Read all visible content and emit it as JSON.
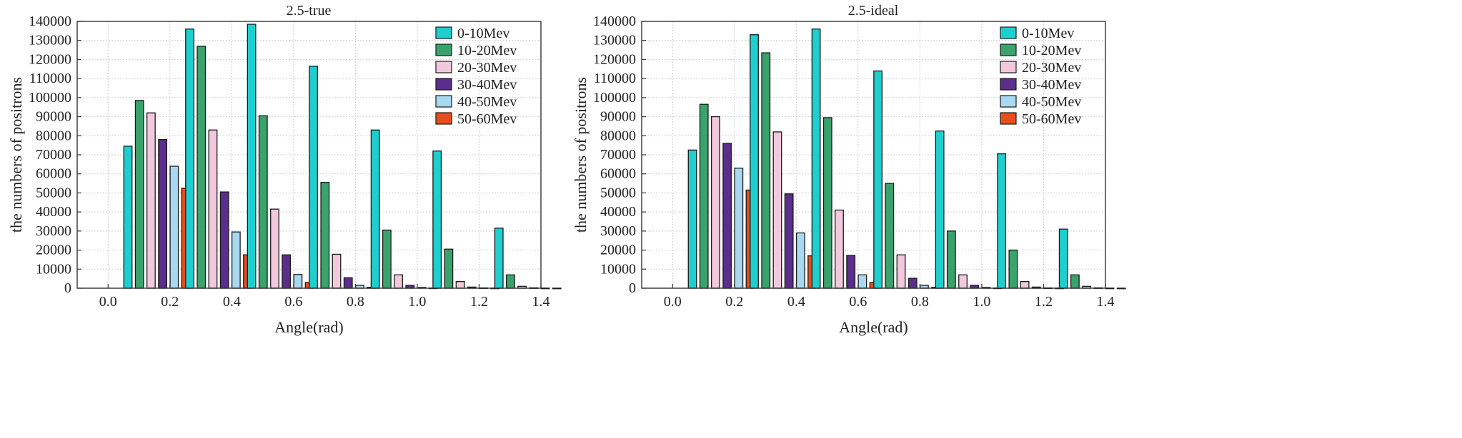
{
  "chart_data": [
    {
      "type": "bar",
      "title": "2.5-true",
      "xlabel": "Angle(rad)",
      "ylabel": "the numbers of positrons",
      "xlim": [
        -0.1,
        1.4
      ],
      "ylim": [
        0,
        140000
      ],
      "xticks": [
        "0.0",
        "0.2",
        "0.4",
        "0.6",
        "0.8",
        "1.0",
        "1.2",
        "1.4"
      ],
      "yticks": [
        "0",
        "10000",
        "20000",
        "30000",
        "40000",
        "50000",
        "60000",
        "70000",
        "80000",
        "90000",
        "100000",
        "110000",
        "120000",
        "130000",
        "140000"
      ],
      "grid": true,
      "legend_position": "top-right",
      "groups": [
        0,
        0.2,
        0.4,
        0.6,
        0.8,
        1.0,
        1.2
      ],
      "series": [
        {
          "name": "0-10Mev",
          "color": "#1fcfcf",
          "values": [
            74500,
            136000,
            138500,
            116500,
            83000,
            72000,
            31500
          ]
        },
        {
          "name": "10-20Mev",
          "color": "#3aa36b",
          "values": [
            98500,
            127000,
            90500,
            55500,
            30500,
            20500,
            7000
          ]
        },
        {
          "name": "20-30Mev",
          "color": "#f2c9dc",
          "values": [
            92000,
            83000,
            41500,
            17800,
            7000,
            3500,
            1000
          ]
        },
        {
          "name": "30-40Mev",
          "color": "#5b2d8c",
          "values": [
            78000,
            50500,
            17500,
            5500,
            1500,
            600,
            200
          ]
        },
        {
          "name": "40-50Mev",
          "color": "#a9d8f1",
          "values": [
            64000,
            29500,
            7200,
            1500,
            400,
            150,
            50
          ]
        },
        {
          "name": "50-60Mev",
          "color": "#e84e1b",
          "values": [
            52500,
            17500,
            3000,
            500,
            100,
            50,
            20
          ]
        }
      ]
    },
    {
      "type": "bar",
      "title": "2.5-ideal",
      "xlabel": "Angle(rad)",
      "ylabel": "the numbers of positrons",
      "xlim": [
        -0.1,
        1.4
      ],
      "ylim": [
        0,
        140000
      ],
      "xticks": [
        "0.0",
        "0.2",
        "0.4",
        "0.6",
        "0.8",
        "1.0",
        "1.2",
        "1.4"
      ],
      "yticks": [
        "0",
        "10000",
        "20000",
        "30000",
        "40000",
        "50000",
        "60000",
        "70000",
        "80000",
        "90000",
        "100000",
        "110000",
        "120000",
        "130000",
        "140000"
      ],
      "grid": true,
      "legend_position": "top-right",
      "groups": [
        0,
        0.2,
        0.4,
        0.6,
        0.8,
        1.0,
        1.2
      ],
      "series": [
        {
          "name": "0-10Mev",
          "color": "#1fcfcf",
          "values": [
            72500,
            133000,
            136000,
            114000,
            82500,
            70500,
            31000
          ]
        },
        {
          "name": "10-20Mev",
          "color": "#3aa36b",
          "values": [
            96500,
            123500,
            89500,
            55000,
            30000,
            20000,
            7000
          ]
        },
        {
          "name": "20-30Mev",
          "color": "#f2c9dc",
          "values": [
            90000,
            82000,
            41000,
            17500,
            7000,
            3500,
            1000
          ]
        },
        {
          "name": "30-40Mev",
          "color": "#5b2d8c",
          "values": [
            76000,
            49500,
            17200,
            5200,
            1500,
            600,
            200
          ]
        },
        {
          "name": "40-50Mev",
          "color": "#a9d8f1",
          "values": [
            63000,
            29000,
            7000,
            1500,
            400,
            150,
            50
          ]
        },
        {
          "name": "50-60Mev",
          "color": "#e84e1b",
          "values": [
            51500,
            17000,
            3000,
            500,
            100,
            50,
            20
          ]
        }
      ]
    }
  ]
}
